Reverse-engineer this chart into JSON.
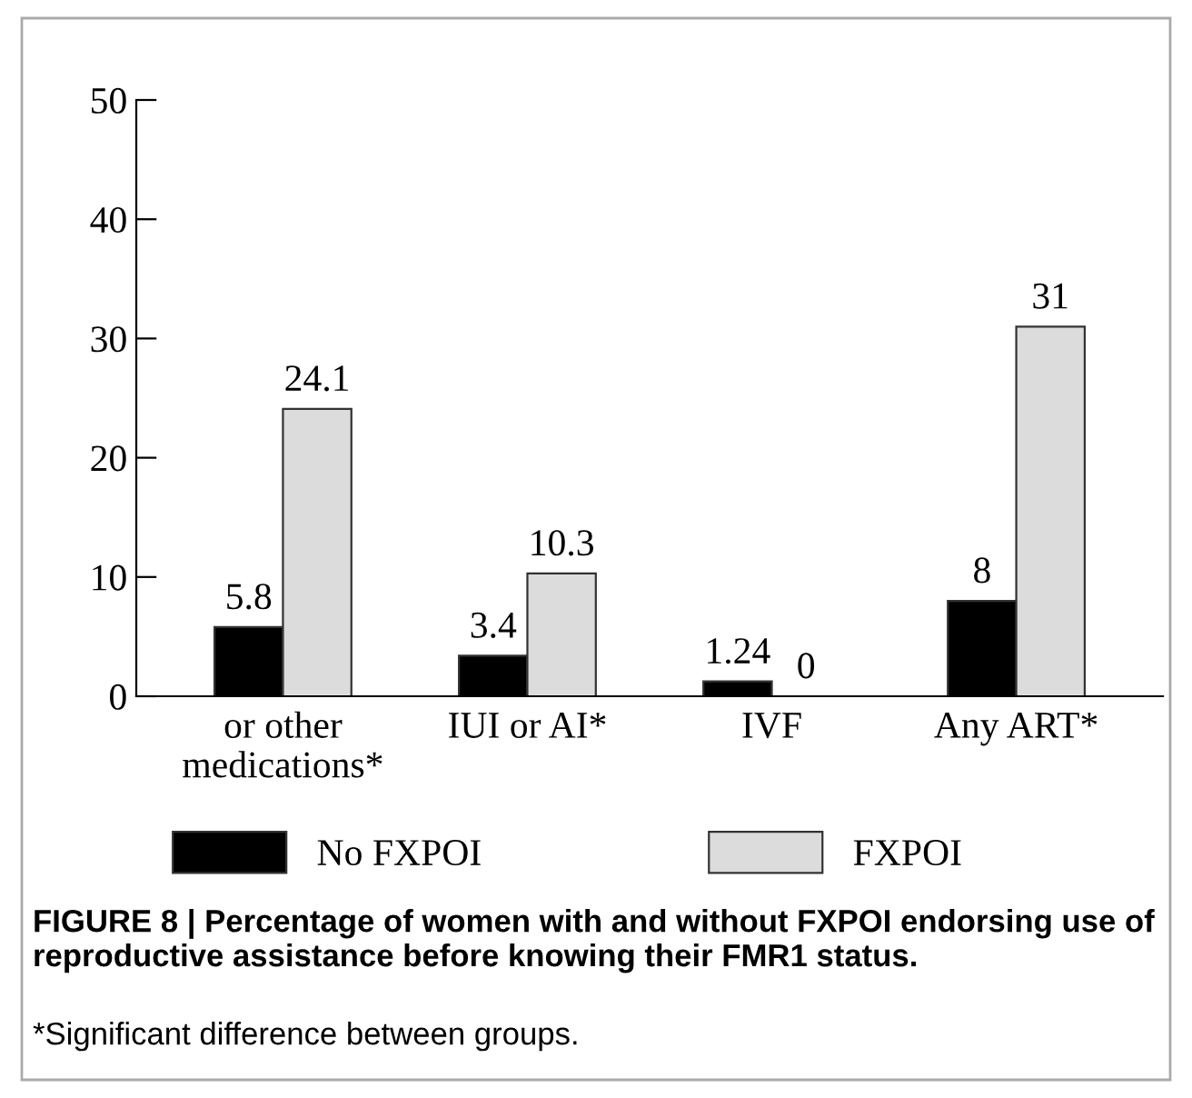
{
  "chart_data": {
    "type": "bar",
    "categories": [
      "or other medications*",
      "IUI or AI*",
      "IVF",
      "Any ART*"
    ],
    "series": [
      {
        "name": "No FXPOI",
        "color": "#000000",
        "values": [
          5.8,
          3.4,
          1.24,
          8
        ]
      },
      {
        "name": "FXPOI",
        "color": "#dcdcdc",
        "values": [
          24.1,
          10.3,
          0,
          31
        ]
      }
    ],
    "ylim": [
      0,
      50
    ],
    "yticks": [
      0,
      10,
      20,
      30,
      40,
      50
    ],
    "data_labels": true,
    "legend": "bottom",
    "grid": false,
    "annotations": [
      "FIGURE 8 | Percentage of women with and without FXPOI endorsing use of reproductive assistance before knowing their FMR1 status.",
      "*Significant difference between groups."
    ]
  }
}
